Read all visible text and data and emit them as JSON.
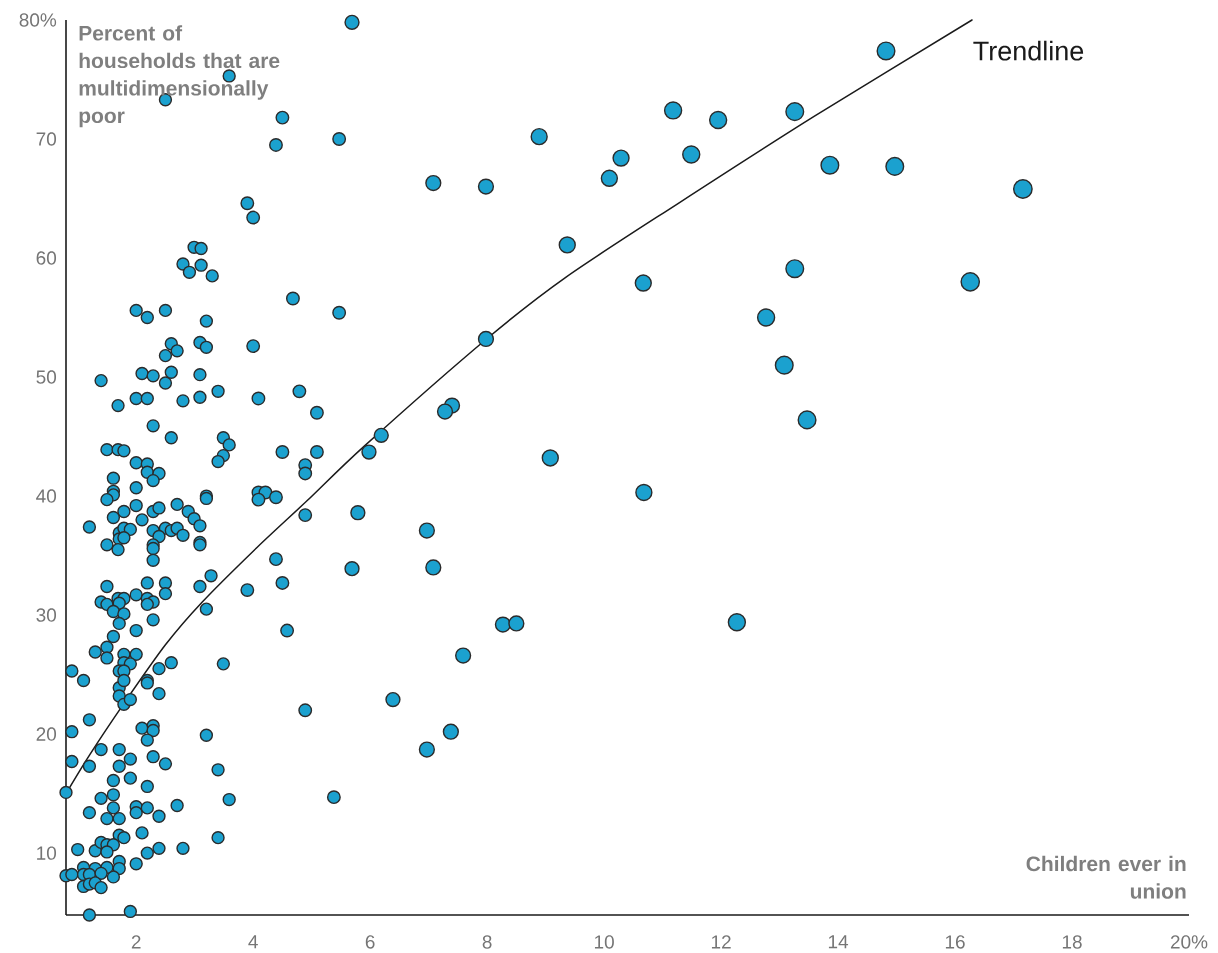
{
  "chart_data": {
    "type": "bubble",
    "xlabel": "Children ever in union",
    "ylabel": "Percent of households that are multidimensionally poor",
    "xlim": [
      0.8,
      20
    ],
    "ylim": [
      4.8,
      80
    ],
    "xticks": [
      2,
      4,
      6,
      8,
      10,
      12,
      14,
      16,
      18,
      {
        "value": 20,
        "label": "20%"
      }
    ],
    "yticks": [
      10,
      20,
      30,
      40,
      50,
      60,
      70,
      {
        "value": 80,
        "label": "80%"
      }
    ],
    "series": [
      {
        "color": "#1ba1cf",
        "marker": "circle",
        "x": [
          3.59,
          2.5,
          2.99,
          3.11,
          2.8,
          3.11,
          2.91,
          3.3,
          2.0,
          2.5,
          2.19,
          3.2,
          2.6,
          2.7,
          2.5,
          3.09,
          3.2,
          1.4,
          2.1,
          2.29,
          2.6,
          2.5,
          3.09,
          1.69,
          2.0,
          2.19,
          2.8,
          3.09,
          3.4,
          2.29,
          2.6,
          3.49,
          3.59,
          3.49,
          3.4,
          1.5,
          1.69,
          1.79,
          2.0,
          2.19,
          2.19,
          2.39,
          2.29,
          1.61,
          1.61,
          1.61,
          1.5,
          2.0,
          3.2,
          3.2,
          3.28,
          3.09,
          3.2,
          1.2,
          1.79,
          2.0,
          1.61,
          2.1,
          2.29,
          2.39,
          2.7,
          2.89,
          2.99,
          3.09,
          3.09,
          3.09,
          1.71,
          1.79,
          1.9,
          1.71,
          1.79,
          1.5,
          1.69,
          2.29,
          2.5,
          2.39,
          2.29,
          2.29,
          2.29,
          2.6,
          2.7,
          2.8,
          1.5,
          1.4,
          1.5,
          1.69,
          1.79,
          1.71,
          2.0,
          2.19,
          2.5,
          2.5,
          2.19,
          2.29,
          2.19,
          1.61,
          1.79,
          1.71,
          2.0,
          2.29,
          1.61,
          1.3,
          1.5,
          1.5,
          1.79,
          2.0,
          1.79,
          1.9,
          1.71,
          1.79,
          0.9,
          1.1,
          1.71,
          1.79,
          1.71,
          1.79,
          1.9,
          2.19,
          2.19,
          2.39,
          2.6,
          2.39,
          3.49,
          1.2,
          0.9,
          2.1,
          2.29,
          2.29,
          2.19,
          3.2,
          1.4,
          1.71,
          1.9,
          1.71,
          2.29,
          2.5,
          0.9,
          1.2,
          3.4,
          1.61,
          1.9,
          2.19,
          3.59,
          0.8,
          1.4,
          1.61,
          1.61,
          1.2,
          1.5,
          1.71,
          2.0,
          2.0,
          2.19,
          2.39,
          2.7,
          1.71,
          1.79,
          2.1,
          2.8,
          3.4,
          2.39,
          2.19,
          2.0,
          1.0,
          1.3,
          1.4,
          1.5,
          1.61,
          1.5,
          1.71,
          1.71,
          1.61,
          1.5,
          1.3,
          1.1,
          0.8,
          0.9,
          1.1,
          1.2,
          1.4,
          1.1,
          1.2,
          1.3,
          1.4,
          1.2,
          1.9,
          5.47,
          4.5,
          4.39,
          3.9,
          4.0,
          4.68,
          5.47,
          4.0,
          4.09,
          4.79,
          5.09,
          4.5,
          5.09,
          4.89,
          4.89,
          4.09,
          4.21,
          4.09,
          4.39,
          4.89,
          4.39,
          4.5,
          3.9,
          4.58,
          5.38,
          4.89,
          5.69,
          5.79,
          5.69,
          6.39,
          6.19,
          5.98,
          6.97,
          7.08,
          8.27,
          8.5,
          7.59,
          7.38,
          6.97,
          7.08,
          7.98,
          7.98,
          7.4,
          7.28,
          10.68,
          8.89,
          10.29,
          10.09,
          9.37,
          10.67,
          9.08,
          11.18,
          11.95,
          11.49,
          12.77,
          12.27,
          14.82,
          13.26,
          13.86,
          14.97,
          13.26,
          13.08,
          13.47,
          16.26,
          17.16
        ],
        "values": [
          75.3,
          73.3,
          60.9,
          60.8,
          59.5,
          59.4,
          58.8,
          58.5,
          55.6,
          55.6,
          55.0,
          54.7,
          52.8,
          52.2,
          51.8,
          52.9,
          52.5,
          49.7,
          50.3,
          50.1,
          50.4,
          49.5,
          50.2,
          47.6,
          48.2,
          48.2,
          48.0,
          48.3,
          48.8,
          45.9,
          44.9,
          44.9,
          44.3,
          43.4,
          42.9,
          43.9,
          43.9,
          43.8,
          42.8,
          42.7,
          42.0,
          41.9,
          41.3,
          41.5,
          40.4,
          40.1,
          39.7,
          40.7,
          40.0,
          39.8,
          33.3,
          32.4,
          30.5,
          37.4,
          38.7,
          39.2,
          38.2,
          38.0,
          38.7,
          39.0,
          39.3,
          38.7,
          38.1,
          37.5,
          36.1,
          35.9,
          36.9,
          37.3,
          37.2,
          36.4,
          36.5,
          35.9,
          35.5,
          37.1,
          37.3,
          36.6,
          35.9,
          35.6,
          34.6,
          37.1,
          37.3,
          36.7,
          32.4,
          31.1,
          30.9,
          31.4,
          31.4,
          31.0,
          31.7,
          32.7,
          32.7,
          31.8,
          31.4,
          31.1,
          30.9,
          30.3,
          30.1,
          29.3,
          28.7,
          29.6,
          28.2,
          26.9,
          27.3,
          26.4,
          26.7,
          26.7,
          26.0,
          25.9,
          25.3,
          25.3,
          25.3,
          24.5,
          23.9,
          24.5,
          23.2,
          22.5,
          22.9,
          24.5,
          24.3,
          25.5,
          26.0,
          23.4,
          25.9,
          21.2,
          20.2,
          20.5,
          20.7,
          20.3,
          19.5,
          19.9,
          18.7,
          18.7,
          17.9,
          17.3,
          18.1,
          17.5,
          17.7,
          17.3,
          17.0,
          16.1,
          16.3,
          15.6,
          14.5,
          15.1,
          14.6,
          14.9,
          13.8,
          13.4,
          12.9,
          12.9,
          13.9,
          13.4,
          13.8,
          13.1,
          14.0,
          11.5,
          11.3,
          11.7,
          10.4,
          11.3,
          10.4,
          10.0,
          9.1,
          10.3,
          10.2,
          10.9,
          10.7,
          10.7,
          10.1,
          9.3,
          8.7,
          8.0,
          8.8,
          8.7,
          8.8,
          8.1,
          8.2,
          8.2,
          8.2,
          8.3,
          7.2,
          7.4,
          7.5,
          7.1,
          4.8,
          5.1,
          70.0,
          71.8,
          69.5,
          64.6,
          63.4,
          56.6,
          55.4,
          52.6,
          48.2,
          48.8,
          47.0,
          43.7,
          43.7,
          42.6,
          41.9,
          40.3,
          40.3,
          39.7,
          39.9,
          38.4,
          34.7,
          32.7,
          32.1,
          28.7,
          14.7,
          22.0,
          79.8,
          38.6,
          33.9,
          22.9,
          45.1,
          43.7,
          37.1,
          34.0,
          29.2,
          29.3,
          26.6,
          20.2,
          18.7,
          66.3,
          66.0,
          53.2,
          47.6,
          47.1,
          40.3,
          70.2,
          68.4,
          66.7,
          61.1,
          57.9,
          43.2,
          72.4,
          71.6,
          68.7,
          55.0,
          29.4,
          77.4,
          72.3,
          67.8,
          67.7,
          59.1,
          51.0,
          46.4,
          58.0,
          65.8
        ],
        "sizes": [
          0.42,
          0.42,
          0.42,
          0.42,
          0.42,
          0.42,
          0.42,
          0.42,
          0.42,
          0.42,
          0.42,
          0.42,
          0.42,
          0.42,
          0.42,
          0.42,
          0.42,
          0.42,
          0.42,
          0.42,
          0.42,
          0.42,
          0.42,
          0.42,
          0.42,
          0.42,
          0.42,
          0.42,
          0.42,
          0.42,
          0.42,
          0.42,
          0.42,
          0.42,
          0.42,
          0.42,
          0.42,
          0.42,
          0.42,
          0.42,
          0.42,
          0.42,
          0.42,
          0.42,
          0.42,
          0.42,
          0.42,
          0.42,
          0.42,
          0.42,
          0.42,
          0.42,
          0.42,
          0.42,
          0.42,
          0.42,
          0.42,
          0.42,
          0.42,
          0.42,
          0.42,
          0.42,
          0.42,
          0.42,
          0.42,
          0.42,
          0.42,
          0.42,
          0.42,
          0.42,
          0.42,
          0.42,
          0.42,
          0.42,
          0.42,
          0.42,
          0.42,
          0.42,
          0.42,
          0.42,
          0.42,
          0.42,
          0.42,
          0.42,
          0.42,
          0.42,
          0.42,
          0.42,
          0.42,
          0.42,
          0.42,
          0.42,
          0.42,
          0.42,
          0.42,
          0.42,
          0.42,
          0.42,
          0.42,
          0.42,
          0.42,
          0.42,
          0.42,
          0.42,
          0.42,
          0.42,
          0.42,
          0.42,
          0.42,
          0.42,
          0.42,
          0.42,
          0.42,
          0.42,
          0.42,
          0.42,
          0.42,
          0.42,
          0.42,
          0.42,
          0.42,
          0.42,
          0.42,
          0.42,
          0.42,
          0.42,
          0.42,
          0.42,
          0.42,
          0.42,
          0.42,
          0.42,
          0.42,
          0.42,
          0.42,
          0.42,
          0.42,
          0.42,
          0.42,
          0.42,
          0.42,
          0.42,
          0.42,
          0.42,
          0.42,
          0.42,
          0.42,
          0.42,
          0.42,
          0.42,
          0.42,
          0.42,
          0.42,
          0.42,
          0.42,
          0.42,
          0.42,
          0.42,
          0.42,
          0.42,
          0.42,
          0.42,
          0.42,
          0.42,
          0.42,
          0.42,
          0.42,
          0.42,
          0.42,
          0.42,
          0.42,
          0.42,
          0.42,
          0.42,
          0.42,
          0.42,
          0.42,
          0.42,
          0.42,
          0.42,
          0.42,
          0.42,
          0.42,
          0.42,
          0.42,
          0.42,
          0.46,
          0.46,
          0.46,
          0.46,
          0.46,
          0.46,
          0.46,
          0.46,
          0.46,
          0.46,
          0.46,
          0.46,
          0.46,
          0.46,
          0.46,
          0.46,
          0.46,
          0.46,
          0.46,
          0.46,
          0.46,
          0.46,
          0.46,
          0.46,
          0.46,
          0.46,
          0.57,
          0.57,
          0.57,
          0.57,
          0.57,
          0.57,
          0.65,
          0.65,
          0.65,
          0.65,
          0.65,
          0.65,
          0.65,
          0.65,
          0.65,
          0.65,
          0.65,
          0.65,
          0.75,
          0.75,
          0.75,
          0.75,
          0.75,
          0.75,
          0.75,
          0.85,
          0.85,
          0.85,
          0.85,
          0.85,
          0.92,
          0.92,
          0.92,
          0.92,
          0.92,
          0.92,
          0.92,
          0.98,
          1
        ]
      },
      {
        "type": "line",
        "name": "Trendline",
        "color": "#1a1a1a",
        "marker": "none",
        "line_style": "solid",
        "x": [
          0.8,
          1.21,
          1.78,
          2.5,
          3.13,
          4.07,
          4.92,
          5.9,
          7.99,
          9.35,
          11.27,
          13.59,
          16.29
        ],
        "values": [
          15.0,
          18.3,
          22.5,
          27.5,
          31.1,
          35.7,
          39.6,
          44.2,
          53.2,
          58.4,
          64.6,
          71.9,
          80.0
        ]
      }
    ]
  }
}
